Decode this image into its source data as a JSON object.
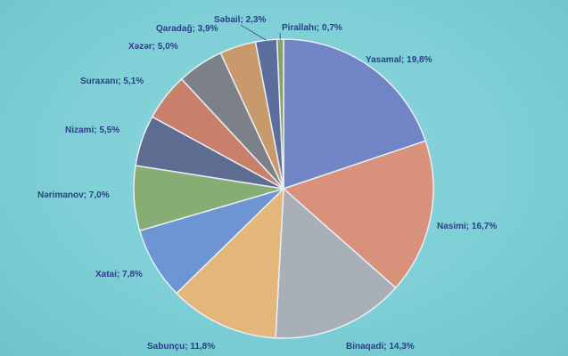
{
  "chart_data": {
    "type": "pie",
    "slices": [
      {
        "label": "Yasamal; 19,8%",
        "value": 19.8,
        "color": "#7084c6"
      },
      {
        "label": "Nasimi; 16,7%",
        "value": 16.7,
        "color": "#d8917b"
      },
      {
        "label": "Binaqadi; 14,3%",
        "value": 14.3,
        "color": "#a9afb7"
      },
      {
        "label": "Sabunçu; 11,8%",
        "value": 11.8,
        "color": "#e3b77a"
      },
      {
        "label": "Xatai; 7,8%",
        "value": 7.8,
        "color": "#6d95d1"
      },
      {
        "label": "Nərimanov; 7,0%",
        "value": 7.0,
        "color": "#86ad74"
      },
      {
        "label": "Nizami; 5,5%",
        "value": 5.5,
        "color": "#5f6c92"
      },
      {
        "label": "Suraxanı; 5,1%",
        "value": 5.1,
        "color": "#c9806a"
      },
      {
        "label": "Xəzər; 5,0%",
        "value": 5.0,
        "color": "#7c8189"
      },
      {
        "label": "Qaradağ; 3,9%",
        "value": 3.9,
        "color": "#c8996a"
      },
      {
        "label": "Səbail; 2,3%",
        "value": 2.3,
        "color": "#5c6f9c"
      },
      {
        "label": "Pirallahı; 0,7%",
        "value": 0.7,
        "color": "#8aa06c"
      }
    ]
  }
}
